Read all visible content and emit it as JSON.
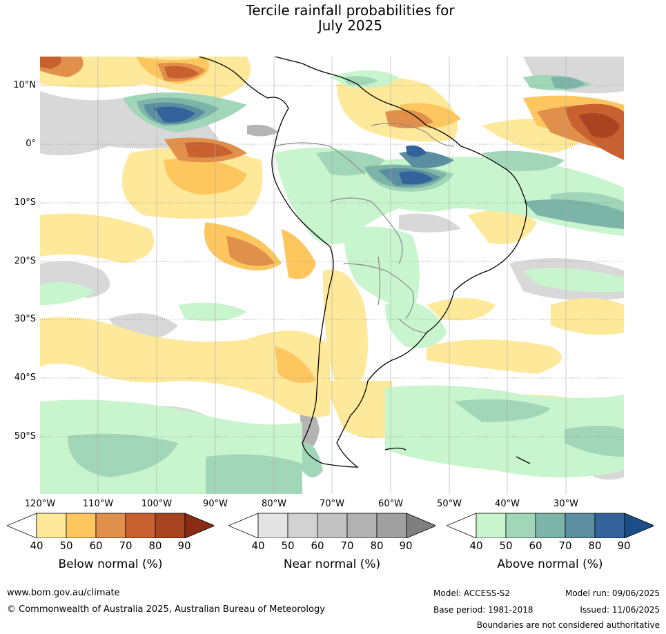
{
  "title_line1": "Tercile rainfall probabilities for",
  "title_line2": "July 2025",
  "map": {
    "lat_labels": [
      "10°N",
      "0°",
      "10°S",
      "20°S",
      "30°S",
      "40°S",
      "50°S"
    ],
    "lon_labels": [
      "120°W",
      "110°W",
      "100°W",
      "90°W",
      "80°W",
      "70°W",
      "60°W",
      "50°W",
      "40°W",
      "30°W"
    ]
  },
  "colorbars": [
    {
      "title": "Below normal (%)",
      "ticks": [
        "40",
        "50",
        "60",
        "70",
        "80",
        "90"
      ],
      "colors": [
        "#ffffff",
        "#fee89a",
        "#fdc65f",
        "#e0904a",
        "#c8612f",
        "#a84420",
        "#8a2c14"
      ]
    },
    {
      "title": "Near normal (%)",
      "ticks": [
        "40",
        "50",
        "60",
        "70",
        "80",
        "90"
      ],
      "colors": [
        "#ffffff",
        "#e4e4e4",
        "#d2d2d2",
        "#c2c2c2",
        "#b2b2b2",
        "#a0a0a0",
        "#7f7f7f"
      ]
    },
    {
      "title": "Above normal (%)",
      "ticks": [
        "40",
        "50",
        "60",
        "70",
        "80",
        "90"
      ],
      "colors": [
        "#ffffff",
        "#c8f5cd",
        "#a2d6b8",
        "#7cb4a8",
        "#5b8ea0",
        "#33639a",
        "#1b4d86"
      ]
    }
  ],
  "footer": {
    "url": "www.bom.gov.au/climate",
    "copyright": "© Commonwealth of Australia 2025, Australian Bureau of Meteorology",
    "model": "Model: ACCESS-S2",
    "base_period": "Base period: 1981-2018",
    "model_run": "Model run: 09/06/2025",
    "issued": "Issued: 11/06/2025",
    "disclaimer": "Boundaries are not considered authoritative"
  }
}
